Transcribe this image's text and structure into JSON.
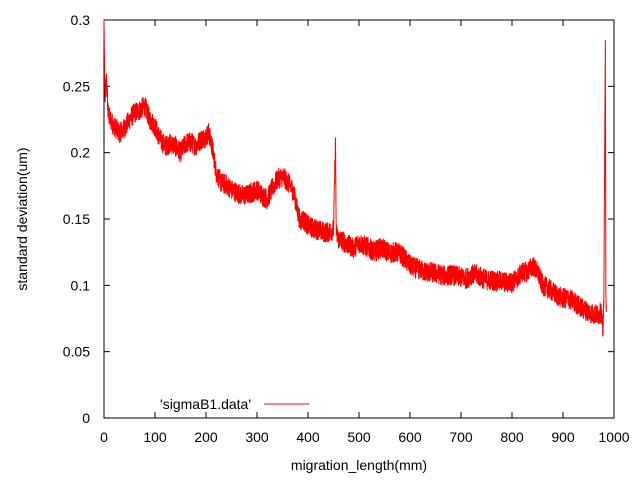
{
  "chart_data": {
    "type": "line",
    "title": "",
    "xlabel": "migration_length(mm)",
    "ylabel": "standard deviation(um)",
    "xlim": [
      0,
      1000
    ],
    "ylim": [
      0,
      0.3
    ],
    "x_ticks": [
      "0",
      "100",
      "200",
      "300",
      "400",
      "500",
      "600",
      "700",
      "800",
      "900",
      "1000"
    ],
    "y_ticks": [
      "0",
      "0.05",
      "0.1",
      "0.15",
      "0.2",
      "0.25",
      "0.3"
    ],
    "grid": false,
    "legend_position": "bottom-left",
    "series": [
      {
        "name": "'sigmaB1.data'",
        "color": "#ff0000",
        "x": [
          0,
          2,
          5,
          8,
          12,
          20,
          30,
          40,
          50,
          60,
          70,
          80,
          90,
          100,
          110,
          120,
          130,
          140,
          150,
          160,
          170,
          180,
          190,
          200,
          205,
          210,
          215,
          220,
          230,
          240,
          250,
          260,
          270,
          280,
          290,
          300,
          310,
          320,
          330,
          340,
          350,
          360,
          370,
          375,
          380,
          385,
          390,
          400,
          410,
          420,
          430,
          440,
          450,
          454,
          455,
          456,
          460,
          470,
          480,
          490,
          500,
          510,
          520,
          530,
          540,
          550,
          560,
          570,
          580,
          590,
          600,
          610,
          620,
          630,
          640,
          650,
          660,
          670,
          680,
          690,
          700,
          710,
          720,
          730,
          740,
          750,
          760,
          770,
          780,
          790,
          800,
          810,
          820,
          830,
          840,
          850,
          860,
          870,
          880,
          890,
          900,
          910,
          920,
          930,
          940,
          950,
          960,
          970,
          975,
          978,
          980,
          982,
          983,
          984,
          985
        ],
        "y": [
          0.3,
          0.24,
          0.255,
          0.23,
          0.225,
          0.22,
          0.215,
          0.218,
          0.225,
          0.23,
          0.232,
          0.235,
          0.225,
          0.22,
          0.21,
          0.205,
          0.207,
          0.205,
          0.2,
          0.207,
          0.208,
          0.205,
          0.21,
          0.212,
          0.215,
          0.208,
          0.198,
          0.185,
          0.177,
          0.176,
          0.172,
          0.17,
          0.168,
          0.168,
          0.17,
          0.172,
          0.168,
          0.165,
          0.173,
          0.18,
          0.182,
          0.178,
          0.172,
          0.165,
          0.155,
          0.148,
          0.15,
          0.145,
          0.143,
          0.142,
          0.14,
          0.14,
          0.142,
          0.21,
          0.15,
          0.138,
          0.135,
          0.133,
          0.13,
          0.128,
          0.132,
          0.13,
          0.128,
          0.125,
          0.128,
          0.127,
          0.124,
          0.125,
          0.124,
          0.12,
          0.115,
          0.113,
          0.112,
          0.11,
          0.11,
          0.109,
          0.108,
          0.107,
          0.108,
          0.107,
          0.106,
          0.105,
          0.108,
          0.108,
          0.106,
          0.104,
          0.104,
          0.103,
          0.103,
          0.102,
          0.102,
          0.105,
          0.11,
          0.11,
          0.115,
          0.11,
          0.1,
          0.098,
          0.095,
          0.092,
          0.09,
          0.09,
          0.088,
          0.085,
          0.082,
          0.08,
          0.078,
          0.078,
          0.08,
          0.065,
          0.085,
          0.22,
          0.285,
          0.09,
          0.08
        ]
      }
    ]
  }
}
